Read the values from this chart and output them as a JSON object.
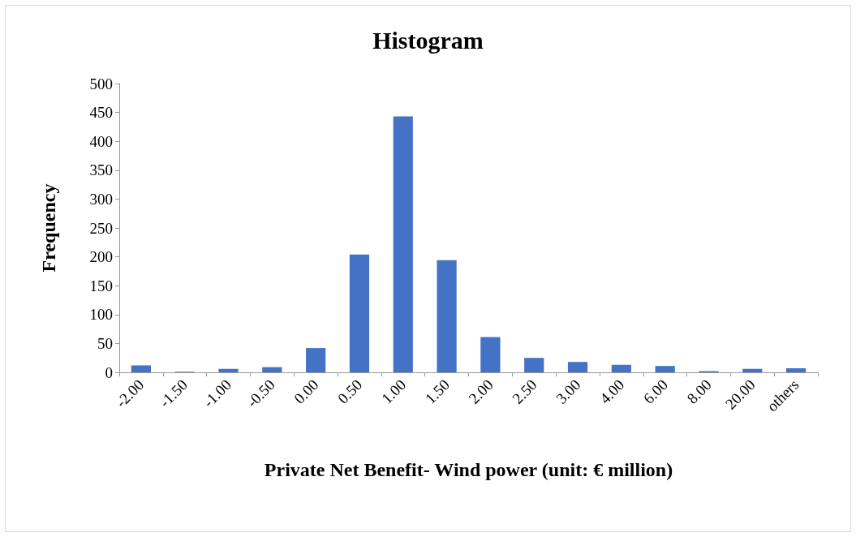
{
  "chart_data": {
    "type": "bar",
    "title": "Histogram",
    "xlabel": "Private Net Benefit- Wind power (unit: € million)",
    "ylabel": "Frequency",
    "categories": [
      "-2.00",
      "-1.50",
      "-1.00",
      "-0.50",
      "0.00",
      "0.50",
      "1.00",
      "1.50",
      "2.00",
      "2.50",
      "3.00",
      "4.00",
      "6.00",
      "8.00",
      "20.00",
      "others"
    ],
    "values": [
      12,
      1,
      6,
      9,
      42,
      204,
      443,
      194,
      61,
      25,
      18,
      13,
      11,
      2,
      6,
      7
    ],
    "color": "#4472c4",
    "ylim": [
      0,
      500
    ],
    "yticks": [
      0,
      50,
      100,
      150,
      200,
      250,
      300,
      350,
      400,
      450,
      500
    ],
    "grid": false
  }
}
